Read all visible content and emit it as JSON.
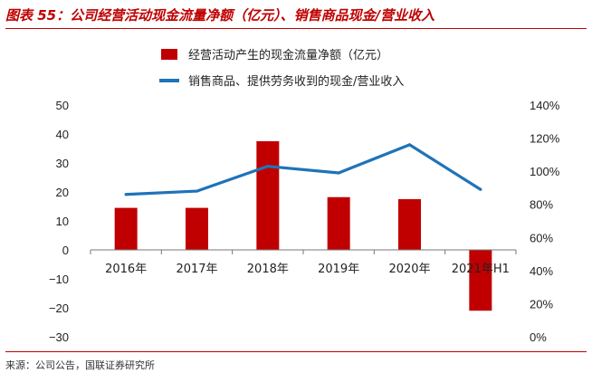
{
  "figure": {
    "title": "图表 55：公司经营活动现金流量净额（亿元）、销售商品现金/营业收入",
    "source": "来源：公司公告，国联证券研究所"
  },
  "chart_data": {
    "type": "bar",
    "title": "",
    "categories": [
      "2016年",
      "2017年",
      "2018年",
      "2019年",
      "2020年",
      "2021年H1"
    ],
    "series": [
      {
        "name": "经营活动产生的现金流量净额（亿元）",
        "type": "bar",
        "axis": "left",
        "color": "#c00000",
        "values": [
          14.5,
          14.5,
          37.5,
          18.2,
          17.5,
          -21.0
        ]
      },
      {
        "name": "销售商品、提供劳务收到的现金/营业收入",
        "type": "line",
        "axis": "right",
        "color": "#1f73b8",
        "values": [
          86,
          88,
          103,
          99,
          116,
          89
        ]
      }
    ],
    "y_left": {
      "ylim": [
        -30,
        50
      ],
      "ticks": [
        50,
        40,
        30,
        20,
        10,
        0,
        -10,
        -20,
        -30
      ]
    },
    "y_right": {
      "ylim": [
        0,
        140
      ],
      "unit": "%",
      "ticks": [
        "140%",
        "120%",
        "100%",
        "80%",
        "60%",
        "40%",
        "20%",
        "0%"
      ]
    },
    "grid": false,
    "legend_position": "top"
  }
}
